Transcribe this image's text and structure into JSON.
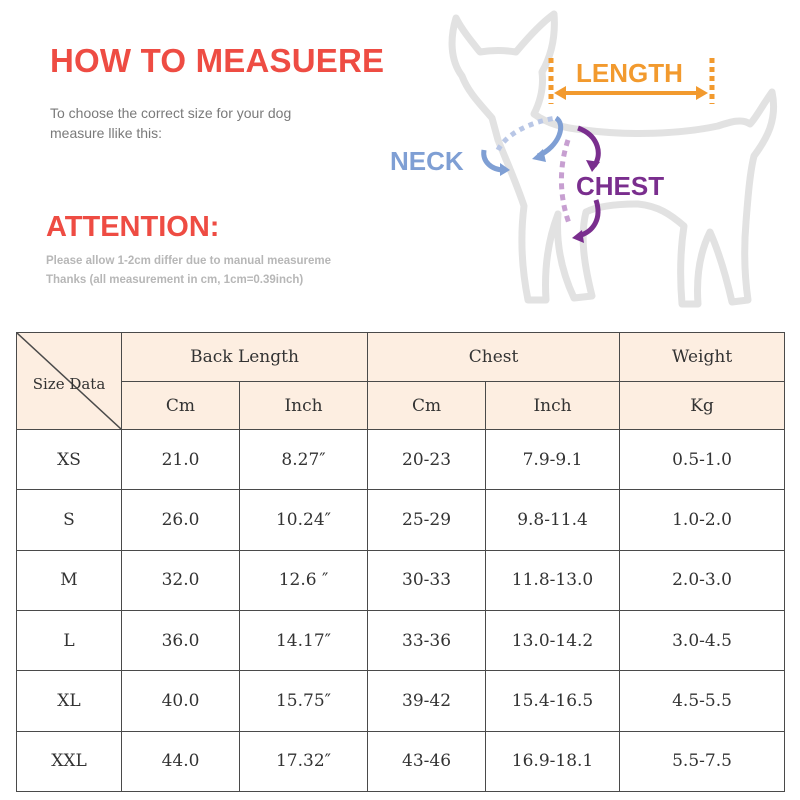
{
  "header": {
    "title": "HOW TO MEASUERE",
    "instruction_line1": "To choose the correct size for your dog",
    "instruction_line2": "measure llike this:"
  },
  "attention": {
    "title": "ATTENTION:",
    "line1": "Please allow 1-2cm differ due to manual measureme",
    "line2": "Thanks (all measurement in cm, 1cm=0.39inch)"
  },
  "diagram": {
    "length_label": "LENGTH",
    "neck_label": "NECK",
    "chest_label": "CHEST",
    "colors": {
      "length": "#f29a2e",
      "neck": "#7f9fd4",
      "chest": "#7a2e8e",
      "chest_light": "#c79fd1",
      "outline": "#e2e2e2"
    }
  },
  "table": {
    "corner_label": "Size Data",
    "groups": [
      "Back Length",
      "Chest",
      "Weight"
    ],
    "subheaders": [
      "Cm",
      "Inch",
      "Cm",
      "Inch",
      "Kg"
    ],
    "rows": [
      {
        "size": "XS",
        "back_cm": "21.0",
        "back_inch": "8.27″",
        "chest_cm": "20-23",
        "chest_inch": "7.9-9.1",
        "weight": "0.5-1.0"
      },
      {
        "size": "S",
        "back_cm": "26.0",
        "back_inch": "10.24″",
        "chest_cm": "25-29",
        "chest_inch": "9.8-11.4",
        "weight": "1.0-2.0"
      },
      {
        "size": "M",
        "back_cm": "32.0",
        "back_inch": "12.6 ″",
        "chest_cm": "30-33",
        "chest_inch": "11.8-13.0",
        "weight": "2.0-3.0"
      },
      {
        "size": "L",
        "back_cm": "36.0",
        "back_inch": "14.17″",
        "chest_cm": "33-36",
        "chest_inch": "13.0-14.2",
        "weight": "3.0-4.5"
      },
      {
        "size": "XL",
        "back_cm": "40.0",
        "back_inch": "15.75″",
        "chest_cm": "39-42",
        "chest_inch": "15.4-16.5",
        "weight": "4.5-5.5"
      },
      {
        "size": "XXL",
        "back_cm": "44.0",
        "back_inch": "17.32″",
        "chest_cm": "43-46",
        "chest_inch": "16.9-18.1",
        "weight": "5.5-7.5"
      }
    ],
    "header_bg": "#fdeee1",
    "border_color": "#4a4a4a"
  }
}
